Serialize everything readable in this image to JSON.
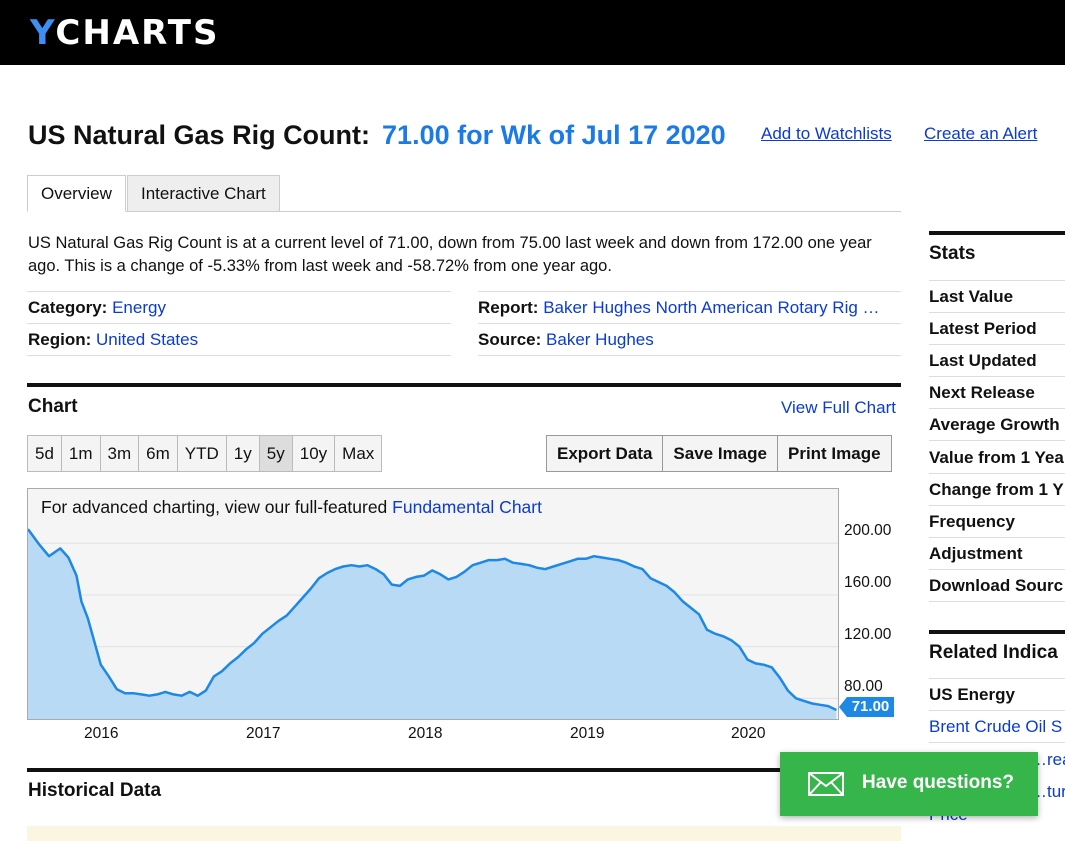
{
  "brand": {
    "logo_y": "Y",
    "logo_rest": "CHARTS"
  },
  "header": {
    "title": "US Natural Gas Rig Count:",
    "value_text": "71.00 for Wk of Jul 17 2020",
    "add_watchlist": "Add to Watchlists",
    "create_alert": "Create an Alert"
  },
  "tabs": [
    {
      "label": "Overview"
    },
    {
      "label": "Interactive Chart"
    }
  ],
  "description": "US Natural Gas Rig Count is at a current level of 71.00, down from 75.00 last week and down from 172.00 one year ago. This is a change of -5.33% from last week and -58.72% from one year ago.",
  "meta": {
    "category_label": "Category:",
    "category_value": "Energy",
    "region_label": "Region:",
    "region_value": "United States",
    "report_label": "Report:",
    "report_value": "Baker Hughes North American Rotary Rig …",
    "source_label": "Source:",
    "source_value": "Baker Hughes"
  },
  "chart_section": {
    "heading": "Chart",
    "view_full": "View Full Chart",
    "ranges": [
      "5d",
      "1m",
      "3m",
      "6m",
      "YTD",
      "1y",
      "5y",
      "10y",
      "Max"
    ],
    "selected_range": "5y",
    "actions": [
      "Export Data",
      "Save Image",
      "Print Image"
    ],
    "note_prefix": "For advanced charting, view our full-featured",
    "note_link": "Fundamental Chart",
    "last_badge": "71.00"
  },
  "chart_data": {
    "type": "area",
    "title": "",
    "x_ticks": [
      "2016",
      "2017",
      "2018",
      "2019",
      "2020"
    ],
    "y_ticks": [
      "200.00",
      "160.00",
      "120.00",
      "80.00"
    ],
    "ylim": [
      64,
      242
    ],
    "xlim": [
      2015.55,
      2020.56
    ],
    "color": "#1e88e5",
    "fill": "#b8daf4",
    "grid": true,
    "x": [
      2015.55,
      2015.62,
      2015.68,
      2015.75,
      2015.8,
      2015.85,
      2015.88,
      2015.92,
      2016.0,
      2016.05,
      2016.1,
      2016.15,
      2016.2,
      2016.25,
      2016.3,
      2016.35,
      2016.4,
      2016.45,
      2016.5,
      2016.55,
      2016.6,
      2016.65,
      2016.7,
      2016.75,
      2016.8,
      2016.85,
      2016.9,
      2016.95,
      2017.0,
      2017.05,
      2017.1,
      2017.15,
      2017.2,
      2017.25,
      2017.3,
      2017.35,
      2017.4,
      2017.45,
      2017.5,
      2017.55,
      2017.6,
      2017.65,
      2017.7,
      2017.75,
      2017.8,
      2017.85,
      2017.9,
      2017.95,
      2018.0,
      2018.05,
      2018.1,
      2018.15,
      2018.2,
      2018.25,
      2018.3,
      2018.35,
      2018.4,
      2018.45,
      2018.5,
      2018.55,
      2018.6,
      2018.65,
      2018.7,
      2018.75,
      2018.8,
      2018.85,
      2018.9,
      2018.95,
      2019.0,
      2019.05,
      2019.1,
      2019.15,
      2019.2,
      2019.25,
      2019.3,
      2019.35,
      2019.4,
      2019.45,
      2019.5,
      2019.55,
      2019.6,
      2019.65,
      2019.7,
      2019.75,
      2019.8,
      2019.85,
      2019.9,
      2019.95,
      2020.0,
      2020.05,
      2020.1,
      2020.15,
      2020.2,
      2020.25,
      2020.3,
      2020.35,
      2020.4,
      2020.45,
      2020.5,
      2020.55
    ],
    "y": [
      211,
      199,
      190,
      196,
      189,
      175,
      155,
      142,
      106,
      97,
      87,
      84,
      84,
      83,
      82,
      83,
      85,
      83,
      82,
      85,
      82,
      86,
      97,
      101,
      107,
      112,
      118,
      123,
      130,
      135,
      140,
      144,
      151,
      158,
      165,
      173,
      177,
      180,
      182,
      183,
      182,
      183,
      180,
      176,
      168,
      167,
      172,
      174,
      175,
      179,
      176,
      172,
      174,
      178,
      183,
      185,
      187,
      187,
      188,
      185,
      184,
      183,
      181,
      180,
      182,
      184,
      186,
      188,
      188,
      190,
      189,
      188,
      187,
      185,
      182,
      180,
      173,
      170,
      167,
      162,
      155,
      150,
      145,
      133,
      130,
      128,
      125,
      120,
      110,
      107,
      106,
      104,
      96,
      86,
      80,
      78,
      76,
      75,
      74,
      71
    ]
  },
  "stats": {
    "heading": "Stats",
    "items": [
      "Last Value",
      "Latest Period",
      "Last Updated",
      "Next Release",
      "Average Growth",
      "Value from 1 Yea",
      "Change from 1 Y",
      "Frequency",
      "Adjustment",
      "Download Sourc"
    ]
  },
  "related": {
    "heading": "Related Indica",
    "group": "US Energy",
    "links": [
      "Brent Crude Oil S",
      "…read",
      "…tura",
      "Price"
    ]
  },
  "historical": {
    "heading": "Historical Data"
  },
  "help_widget": {
    "label": "Have questions?"
  }
}
